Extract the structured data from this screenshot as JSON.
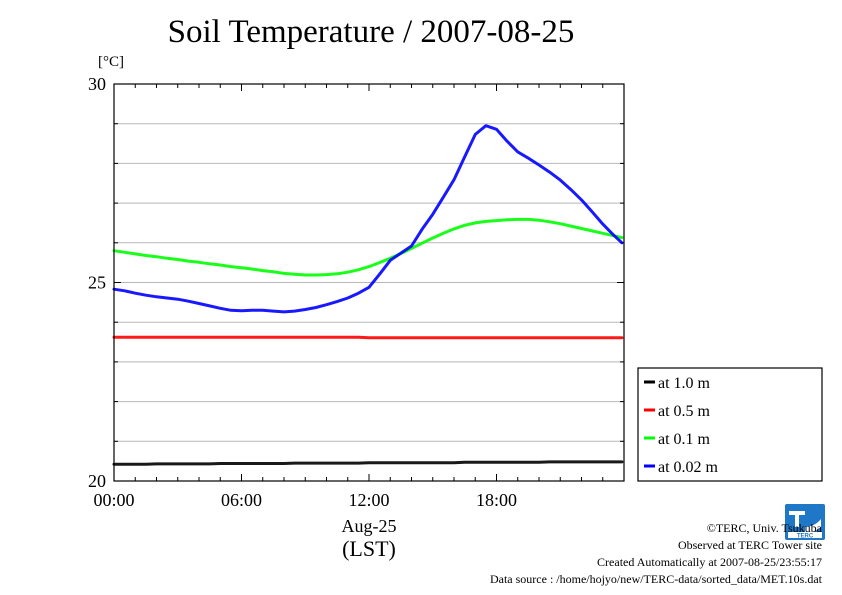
{
  "chart_data": {
    "type": "line",
    "title": "Soil Temperature / 2007-08-25",
    "ylabel": "[°C]",
    "xlabel_date": "Aug-25",
    "xlabel_tz": "(LST)",
    "xlim": [
      0,
      24
    ],
    "ylim": [
      20,
      30
    ],
    "x_ticks": [
      0,
      6,
      12,
      18
    ],
    "x_tick_labels": [
      "00:00",
      "06:00",
      "12:00",
      "18:00"
    ],
    "y_ticks": [
      20,
      25,
      30
    ],
    "y_tick_labels": [
      "20",
      "25",
      "30"
    ],
    "grid": true,
    "legend_position": "right",
    "x": [
      0,
      0.5,
      1,
      1.5,
      2,
      2.5,
      3,
      3.5,
      4,
      4.5,
      5,
      5.5,
      6,
      6.5,
      7,
      7.5,
      8,
      8.5,
      9,
      9.5,
      10,
      10.5,
      11,
      11.5,
      12,
      12.5,
      13,
      13.5,
      14,
      14.5,
      15,
      15.5,
      16,
      16.5,
      17,
      17.5,
      18,
      18.5,
      19,
      19.5,
      20,
      20.5,
      21,
      21.5,
      22,
      22.5,
      23,
      23.5,
      23.9
    ],
    "series": [
      {
        "name": "at 1.0 m",
        "color": "#000000",
        "values": [
          20.42,
          20.42,
          20.42,
          20.42,
          20.43,
          20.43,
          20.43,
          20.43,
          20.43,
          20.43,
          20.44,
          20.44,
          20.44,
          20.44,
          20.44,
          20.44,
          20.44,
          20.45,
          20.45,
          20.45,
          20.45,
          20.45,
          20.45,
          20.45,
          20.46,
          20.46,
          20.46,
          20.46,
          20.46,
          20.46,
          20.46,
          20.46,
          20.46,
          20.47,
          20.47,
          20.47,
          20.47,
          20.47,
          20.47,
          20.47,
          20.47,
          20.48,
          20.48,
          20.48,
          20.48,
          20.48,
          20.48,
          20.48,
          20.48
        ]
      },
      {
        "name": "at 0.5 m",
        "color": "#ff0000",
        "values": [
          23.62,
          23.62,
          23.62,
          23.62,
          23.62,
          23.62,
          23.62,
          23.62,
          23.62,
          23.62,
          23.62,
          23.62,
          23.62,
          23.62,
          23.62,
          23.62,
          23.62,
          23.62,
          23.62,
          23.62,
          23.62,
          23.62,
          23.62,
          23.62,
          23.61,
          23.61,
          23.61,
          23.61,
          23.61,
          23.61,
          23.61,
          23.61,
          23.61,
          23.61,
          23.61,
          23.61,
          23.61,
          23.61,
          23.61,
          23.61,
          23.61,
          23.61,
          23.61,
          23.61,
          23.61,
          23.61,
          23.61,
          23.61,
          23.61
        ]
      },
      {
        "name": "at 0.1 m",
        "color": "#00ff00",
        "values": [
          25.8,
          25.76,
          25.72,
          25.68,
          25.65,
          25.61,
          25.58,
          25.54,
          25.51,
          25.47,
          25.44,
          25.4,
          25.37,
          25.34,
          25.3,
          25.27,
          25.23,
          25.21,
          25.19,
          25.19,
          25.2,
          25.22,
          25.26,
          25.32,
          25.4,
          25.5,
          25.61,
          25.73,
          25.86,
          25.99,
          26.12,
          26.24,
          26.35,
          26.44,
          26.5,
          26.54,
          26.56,
          26.58,
          26.59,
          26.59,
          26.57,
          26.53,
          26.48,
          26.42,
          26.36,
          26.3,
          26.24,
          26.18,
          26.13
        ]
      },
      {
        "name": "at 0.02 m",
        "color": "#0000ff",
        "values": [
          24.83,
          24.79,
          24.73,
          24.68,
          24.64,
          24.61,
          24.58,
          24.53,
          24.47,
          24.41,
          24.35,
          24.3,
          24.29,
          24.3,
          24.3,
          24.28,
          24.26,
          24.28,
          24.32,
          24.37,
          24.44,
          24.52,
          24.61,
          24.73,
          24.88,
          25.21,
          25.56,
          25.74,
          25.92,
          26.34,
          26.72,
          27.15,
          27.59,
          28.16,
          28.73,
          28.95,
          28.86,
          28.56,
          28.29,
          28.13,
          27.96,
          27.78,
          27.58,
          27.34,
          27.08,
          26.78,
          26.47,
          26.2,
          26.0
        ]
      }
    ]
  },
  "credits": {
    "copyright": "©TERC, Univ. Tsukuba",
    "site": "Observed at TERC Tower site",
    "created": "Created Automatically at 2007-08-25/23:55:17",
    "source": "Data source : /home/hojyo/new/TERC-data/sorted_data/MET.10s.dat"
  },
  "logo": {
    "name": "terc-logo",
    "text": "TERC",
    "color": "#1f77c8"
  }
}
